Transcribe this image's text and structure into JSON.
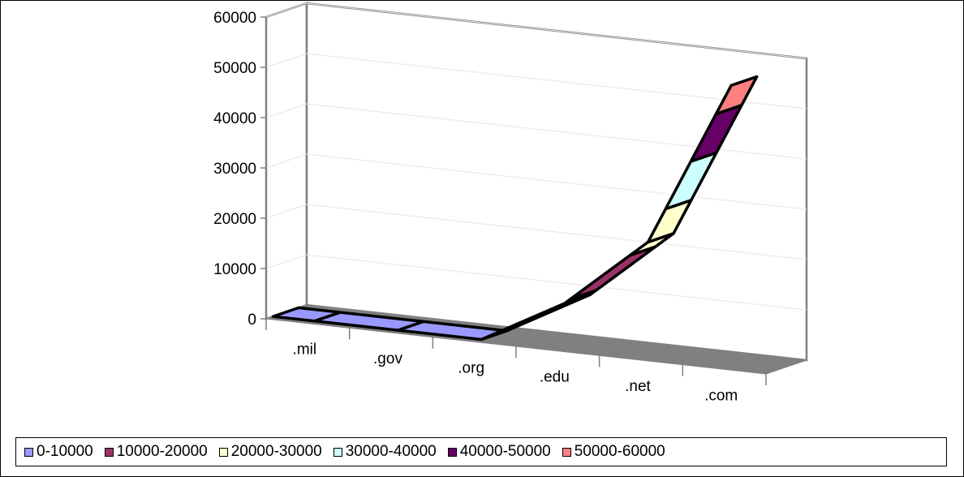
{
  "chart_data": {
    "type": "surface",
    "title": "",
    "xlabel": "",
    "ylabel": "",
    "categories": [
      ".mil",
      ".gov",
      ".org",
      ".edu",
      ".net",
      ".com"
    ],
    "values": [
      0,
      0,
      0,
      9000,
      23000,
      56000
    ],
    "ylim": [
      0,
      60000
    ],
    "yticks": [
      "0",
      "10000",
      "20000",
      "30000",
      "40000",
      "50000",
      "60000"
    ],
    "bands": [
      {
        "name": "0-10000",
        "color": "#9999ff"
      },
      {
        "name": "10000-20000",
        "color": "#993366"
      },
      {
        "name": "20000-30000",
        "color": "#ffffcc"
      },
      {
        "name": "30000-40000",
        "color": "#ccffff"
      },
      {
        "name": "40000-50000",
        "color": "#660066"
      },
      {
        "name": "50000-60000",
        "color": "#ff8080"
      }
    ],
    "legend_position": "bottom",
    "gridlines": true
  }
}
